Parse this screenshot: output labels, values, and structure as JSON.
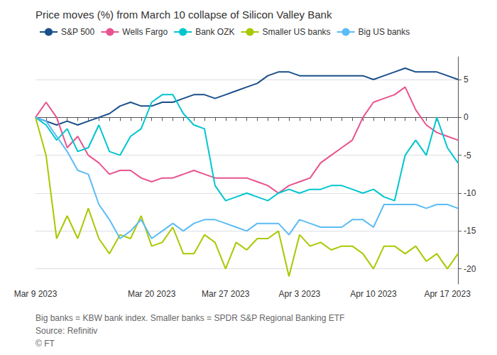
{
  "chart_data": {
    "type": "line",
    "title": "Price moves (%) from March 10 collapse of Silicon Valley Bank",
    "annotations": [
      "Big banks = KBW bank index. Smaller banks = SPDR S&P Regional Banking ETF",
      "Source: Refinitiv",
      "© FT"
    ],
    "categories": [
      "Mar 9 2023",
      null,
      null,
      null,
      null,
      null,
      null,
      null,
      null,
      null,
      null,
      "Mar 20 2023",
      null,
      null,
      null,
      null,
      null,
      null,
      "Mar 27 2023",
      null,
      null,
      null,
      null,
      null,
      null,
      "Apr 3 2023",
      null,
      null,
      null,
      null,
      null,
      null,
      "Apr 10 2023",
      null,
      null,
      null,
      null,
      null,
      null,
      "Apr 17 2023",
      null
    ],
    "ylim": [
      -22,
      8
    ],
    "yticks": [
      5,
      0,
      -5,
      -10,
      -15,
      -20
    ],
    "grid": true,
    "legend": "upper left",
    "series": [
      {
        "name": "S&P 500",
        "color": "#1a4f8a",
        "values": [
          0,
          -0.5,
          -1,
          -0.5,
          -1,
          -0.5,
          0,
          0.5,
          1.5,
          2,
          1.5,
          1.5,
          2,
          2,
          2.5,
          3,
          3,
          2.5,
          3,
          3.5,
          4,
          4.5,
          5.5,
          6,
          6,
          5.5,
          5.5,
          5.5,
          5.5,
          5.5,
          5.5,
          5.5,
          5,
          5.5,
          6,
          6.5,
          6,
          6,
          6,
          5.5,
          5
        ]
      },
      {
        "name": "Wells Fargo",
        "color": "#e8538f",
        "values": [
          0,
          2,
          0,
          -4,
          -2.5,
          -5,
          -6,
          -7.5,
          -7,
          -7,
          -8,
          -8.5,
          -8,
          -8,
          -7.5,
          -7,
          -7.5,
          -8,
          -8,
          -8,
          -8,
          -8.5,
          -9,
          -10,
          -9,
          -8.5,
          -8,
          -6,
          -5,
          -4,
          -3,
          0,
          2,
          2.5,
          3,
          4,
          1,
          -1,
          -2,
          -2.5,
          -3
        ]
      },
      {
        "name": "Bank OZK",
        "color": "#00c5cd",
        "values": [
          0,
          -1,
          -3,
          -1.5,
          -4.5,
          -4,
          -1,
          -4.5,
          -5,
          -2.5,
          -1.5,
          2,
          3,
          3,
          0.5,
          -1,
          -1.5,
          -9,
          -11,
          -10.5,
          -10,
          -10.5,
          -11,
          -10,
          -9.5,
          -10,
          -9.5,
          -9.5,
          -9,
          -9,
          -9.5,
          -10,
          -9.5,
          -10.5,
          -11,
          -5,
          -3,
          -5,
          0,
          -4,
          -6
        ]
      },
      {
        "name": "Smaller US banks",
        "color": "#aac800",
        "values": [
          0,
          -5,
          -16,
          -13,
          -16,
          -12,
          -16,
          -18,
          -15.5,
          -16,
          -13,
          -17,
          -16.5,
          -14.5,
          -18,
          -18,
          -15.5,
          -16.5,
          -20,
          -16.5,
          -17.5,
          -16,
          -16,
          -15,
          -21,
          -15.5,
          -17,
          -16.5,
          -17.5,
          -17,
          -17,
          -18,
          -20,
          -17,
          -17,
          -18,
          -17,
          -19,
          -18,
          -20,
          -18
        ]
      },
      {
        "name": "Big US banks",
        "color": "#5bbcf5",
        "values": [
          0,
          -0.5,
          -2.5,
          -4.5,
          -7,
          -7.5,
          -11.5,
          -13.5,
          -16,
          -15,
          -13.5,
          -16,
          -15,
          -14,
          -15,
          -14,
          -13.5,
          -13.5,
          -14,
          -14.5,
          -15,
          -14,
          -14,
          -14,
          -15.5,
          -13.5,
          -14,
          -14.5,
          -14.5,
          -14.5,
          -13.5,
          -13.5,
          -14.5,
          -11.5,
          -11.5,
          -11.5,
          -11.5,
          -12,
          -11.5,
          -11.5,
          -12
        ]
      }
    ]
  }
}
